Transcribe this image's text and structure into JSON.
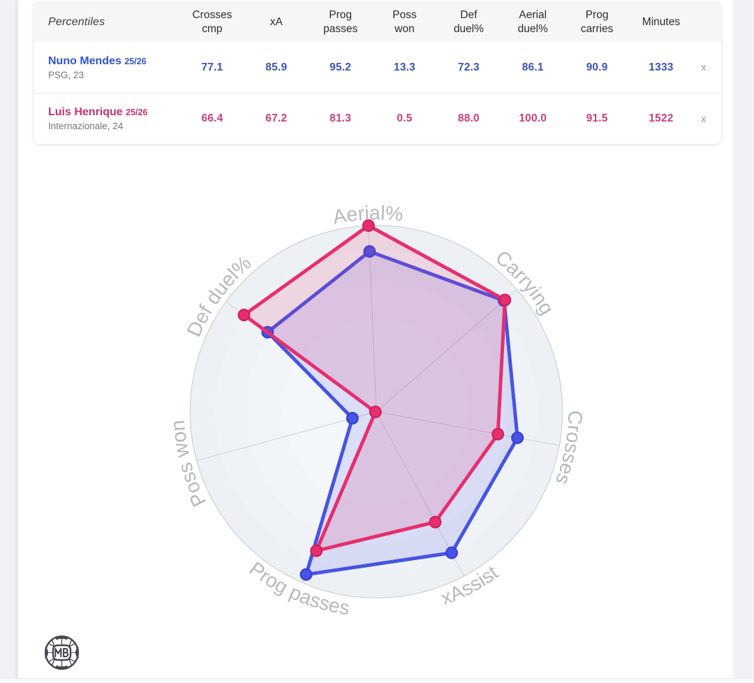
{
  "table": {
    "corner_label": "Percentiles",
    "columns": [
      "Crosses cmp",
      "xA",
      "Prog passes",
      "Poss won",
      "Def duel%",
      "Aerial duel%",
      "Prog carries",
      "Minutes"
    ],
    "rows": [
      {
        "name": "Nuno Mendes",
        "season": "25/26",
        "club": "PSG, 23",
        "values": [
          "77.1",
          "85.9",
          "95.2",
          "13.3",
          "72.3",
          "86.1",
          "90.9",
          "1333"
        ],
        "remove_label": "x",
        "color": "#2f55c8"
      },
      {
        "name": "Luis Henrique",
        "season": "25/26",
        "club": "Internazionale, 24",
        "values": [
          "66.4",
          "67.2",
          "81.3",
          "0.5",
          "88.0",
          "100.0",
          "91.5",
          "1522"
        ],
        "remove_label": "x",
        "color": "#ca2e74"
      }
    ]
  },
  "chart_data": {
    "type": "radar",
    "categories": [
      "Aerial%",
      "Carrying",
      "Crosses",
      "xAssist",
      "Prog passes",
      "Poss won",
      "Def duel%"
    ],
    "series": [
      {
        "name": "Nuno Mendes",
        "color": "#4753e4",
        "dot_edge": "#3a40d6",
        "values": [
          86.1,
          90.9,
          77.1,
          85.9,
          95.2,
          13.3,
          72.3
        ]
      },
      {
        "name": "Luis Henrique",
        "color": "#e72e6f",
        "dot_edge": "#cf2260",
        "values": [
          100.0,
          91.5,
          66.4,
          67.2,
          81.3,
          0.5,
          88.0
        ]
      }
    ],
    "rmin": 0,
    "rmax": 100,
    "label_color": "#b6b9bc",
    "grid_ring_colors": [
      "#edf0f4",
      "#eff2f6",
      "#f2f5f7",
      "#f4f7f9"
    ],
    "spoke_color": "#ced2d6",
    "rim_color": "#c5cbd1",
    "fill_opacity": [
      0.15,
      0.15
    ],
    "legend_position": "none",
    "grid": "circular"
  },
  "logo": {
    "label": "MB"
  }
}
